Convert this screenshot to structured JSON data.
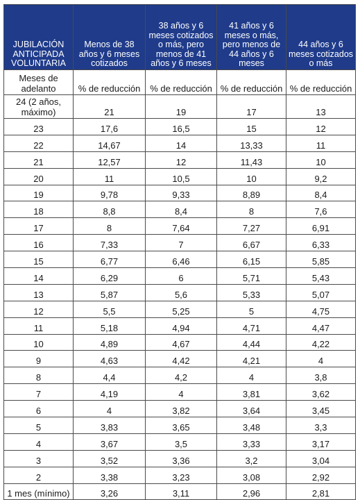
{
  "table": {
    "headers": [
      "JUBILACIÓN ANTICIPADA VOLUNTARIA",
      "Menos de 38 años y 6 meses cotizados",
      "38 años y 6 meses cotizados o más, pero menos de 41 años y 6 meses",
      "41 años y 6 meses o más, pero menos de 44 años y 6 meses",
      "44 años y 6 meses cotizados o más"
    ],
    "subheaders": [
      "Meses de adelanto",
      "% de reducción",
      "% de reducción",
      "% de reducción",
      "% de reducción"
    ],
    "rows": [
      [
        "24 (2 años, máximo)",
        "21",
        "19",
        "17",
        "13"
      ],
      [
        "23",
        "17,6",
        "16,5",
        "15",
        "12"
      ],
      [
        "22",
        "14,67",
        "14",
        "13,33",
        "11"
      ],
      [
        "21",
        "12,57",
        "12",
        "11,43",
        "10"
      ],
      [
        "20",
        "11",
        "10,5",
        "10",
        "9,2"
      ],
      [
        "19",
        "9,78",
        "9,33",
        "8,89",
        "8,4"
      ],
      [
        "18",
        "8,8",
        "8,4",
        "8",
        "7,6"
      ],
      [
        "17",
        "8",
        "7,64",
        "7,27",
        "6,91"
      ],
      [
        "16",
        "7,33",
        "7",
        "6,67",
        "6,33"
      ],
      [
        "15",
        "6,77",
        "6,46",
        "6,15",
        "5,85"
      ],
      [
        "14",
        "6,29",
        "6",
        "5,71",
        "5,43"
      ],
      [
        "13",
        "5,87",
        "5,6",
        "5,33",
        "5,07"
      ],
      [
        "12",
        "5,5",
        "5,25",
        "5",
        "4,75"
      ],
      [
        "11",
        "5,18",
        "4,94",
        "4,71",
        "4,47"
      ],
      [
        "10",
        "4,89",
        "4,67",
        "4,44",
        "4,22"
      ],
      [
        "9",
        "4,63",
        "4,42",
        "4,21",
        "4"
      ],
      [
        "8",
        "4,4",
        "4,2",
        "4",
        "3,8"
      ],
      [
        "7",
        "4,19",
        "4",
        "3,81",
        "3,62"
      ],
      [
        "6",
        "4",
        "3,82",
        "3,64",
        "3,45"
      ],
      [
        "5",
        "3,83",
        "3,65",
        "3,48",
        "3,3"
      ],
      [
        "4",
        "3,67",
        "3,5",
        "3,33",
        "3,17"
      ],
      [
        "3",
        "3,52",
        "3,36",
        "3,2",
        "3,04"
      ],
      [
        "2",
        "3,38",
        "3,23",
        "3,08",
        "2,92"
      ],
      [
        "1 mes (mínimo)",
        "3,26",
        "3,11",
        "2,96",
        "2,81"
      ]
    ],
    "header_bg": "#1f3b8a",
    "header_text": "#ffffff",
    "border": "#4a4a4a"
  }
}
